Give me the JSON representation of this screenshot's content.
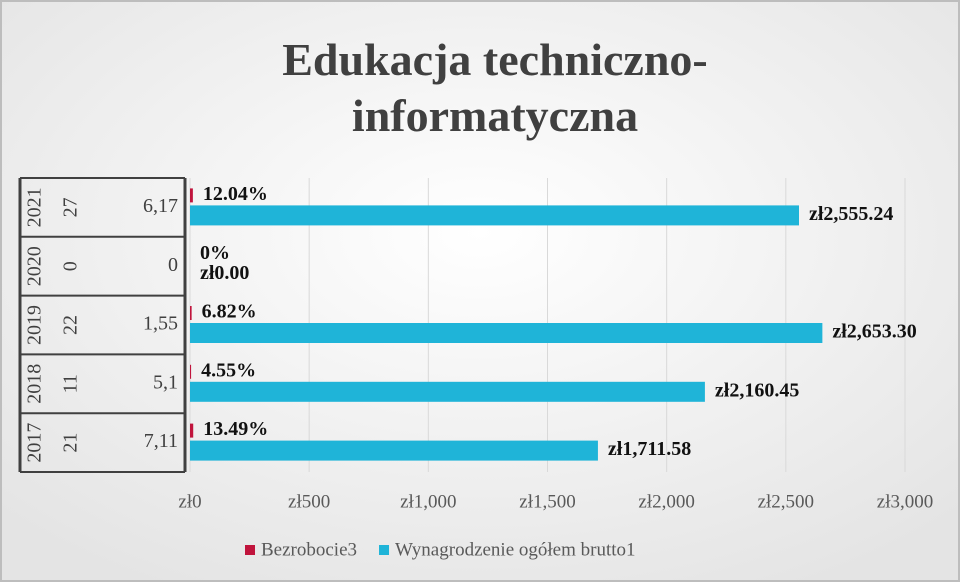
{
  "chart_data": {
    "type": "bar",
    "orientation": "horizontal",
    "title": "Edukacja techniczno-informatyczna",
    "categories": [
      [
        "2017",
        "21",
        "7,11"
      ],
      [
        "2018",
        "11",
        "5,1"
      ],
      [
        "2019",
        "22",
        "1,55"
      ],
      [
        "2020",
        "0",
        "0"
      ],
      [
        "2021",
        "27",
        "6,17"
      ]
    ],
    "series": [
      {
        "name": "Bezrobocie3",
        "color": "#c0143c",
        "values": [
          13.49,
          4.55,
          6.82,
          0,
          12.04
        ],
        "value_labels": [
          "13.49%",
          "4.55%",
          "6.82%",
          "0%",
          "12.04%"
        ]
      },
      {
        "name": "Wynagrodzenie ogółem brutto1",
        "color": "#1fb4d8",
        "values": [
          1711.58,
          2160.45,
          2653.3,
          0,
          2555.24
        ],
        "value_labels": [
          "zł1,711.58",
          "zł2,160.45",
          "zł2,653.30",
          "zł0.00",
          "zł2,555.24"
        ]
      }
    ],
    "xlim": [
      0,
      3000
    ],
    "xticks": [
      {
        "value": 0,
        "label": "zł0"
      },
      {
        "value": 500,
        "label": "zł500"
      },
      {
        "value": 1000,
        "label": "zł1,000"
      },
      {
        "value": 1500,
        "label": "zł1,500"
      },
      {
        "value": 2000,
        "label": "zł2,000"
      },
      {
        "value": 2500,
        "label": "zł2,500"
      },
      {
        "value": 3000,
        "label": "zł3,000"
      }
    ],
    "grid": true,
    "legend": "bottom"
  }
}
